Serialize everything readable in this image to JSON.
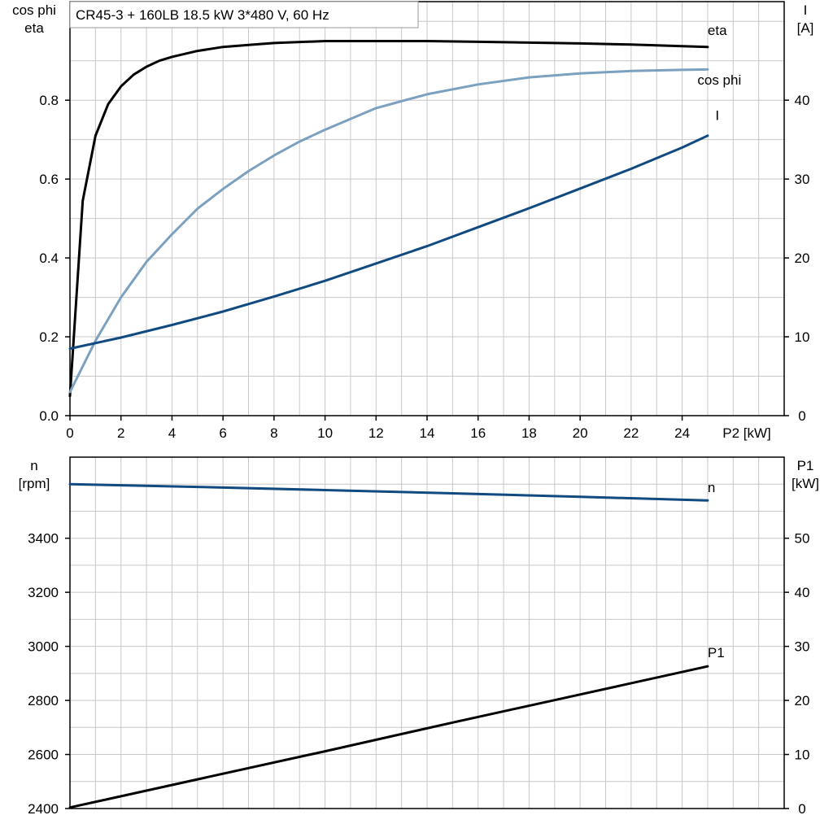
{
  "title_box": "CR45-3 + 160LB   18.5 kW   3*480 V, 60 Hz",
  "colors": {
    "black": "#000000",
    "light_blue": "#7ba0c0",
    "dark_blue": "#104a80",
    "grid": "#c8c8c8"
  },
  "chart_data": [
    {
      "type": "line",
      "xlabel": "P2 [kW]",
      "x_ticks": [
        "0",
        "2",
        "4",
        "6",
        "8",
        "10",
        "12",
        "14",
        "16",
        "18",
        "20",
        "22",
        "24"
      ],
      "xlim": [
        0,
        28
      ],
      "y_left": {
        "label_lines": [
          "cos phi",
          "eta"
        ],
        "ticks": [
          "0.0",
          "0.2",
          "0.4",
          "0.6",
          "0.8"
        ],
        "lim": [
          0,
          1.05
        ]
      },
      "y_right": {
        "label_lines": [
          "I",
          "[A]"
        ],
        "ticks": [
          "0",
          "10",
          "20",
          "30",
          "40"
        ],
        "lim": [
          0,
          52.5
        ]
      },
      "grid": true,
      "series": [
        {
          "name": "eta",
          "axis": "left",
          "color": "#000000",
          "x": [
            0,
            0.5,
            1,
            1.5,
            2,
            2.5,
            3,
            3.5,
            4,
            5,
            6,
            7,
            8,
            10,
            12,
            14,
            16,
            18,
            20,
            22,
            24,
            25
          ],
          "y": [
            0.05,
            0.545,
            0.71,
            0.79,
            0.835,
            0.865,
            0.885,
            0.9,
            0.91,
            0.925,
            0.935,
            0.94,
            0.945,
            0.95,
            0.95,
            0.95,
            0.948,
            0.946,
            0.944,
            0.941,
            0.937,
            0.935
          ]
        },
        {
          "name": "cos phi",
          "axis": "left",
          "color": "#7ba0c0",
          "x": [
            0,
            1,
            2,
            3,
            4,
            5,
            6,
            7,
            8,
            9,
            10,
            12,
            14,
            16,
            18,
            20,
            22,
            24,
            25
          ],
          "y": [
            0.06,
            0.19,
            0.3,
            0.39,
            0.46,
            0.525,
            0.575,
            0.62,
            0.66,
            0.695,
            0.725,
            0.78,
            0.815,
            0.84,
            0.858,
            0.868,
            0.874,
            0.877,
            0.878
          ]
        },
        {
          "name": "I",
          "axis": "right",
          "color": "#104a80",
          "x": [
            0,
            2,
            4,
            6,
            8,
            10,
            12,
            14,
            16,
            18,
            20,
            22,
            24,
            25
          ],
          "y": [
            8.5,
            9.9,
            11.5,
            13.2,
            15.1,
            17.1,
            19.3,
            21.5,
            23.9,
            26.3,
            28.8,
            31.3,
            34.0,
            35.5
          ]
        }
      ],
      "annotations": [
        {
          "text": "eta",
          "x": 25,
          "y": 0.965,
          "axis": "left",
          "color": "#000000"
        },
        {
          "text": "cos phi",
          "x": 24.6,
          "y": 0.84,
          "axis": "left",
          "color": "#7ba0c0"
        },
        {
          "text": "I",
          "x": 25.3,
          "y": 37.5,
          "axis": "right",
          "color": "#104a80"
        }
      ]
    },
    {
      "type": "line",
      "xlabel": "",
      "xlim": [
        0,
        28
      ],
      "y_left": {
        "label_lines": [
          "n",
          "[rpm]"
        ],
        "ticks": [
          "2400",
          "2600",
          "2800",
          "3000",
          "3200",
          "3400"
        ],
        "lim": [
          2400,
          3700
        ]
      },
      "y_right": {
        "label_lines": [
          "P1",
          "[kW]"
        ],
        "ticks": [
          "0",
          "10",
          "20",
          "30",
          "40",
          "50"
        ],
        "lim": [
          0,
          65
        ]
      },
      "grid": true,
      "series": [
        {
          "name": "n",
          "axis": "left",
          "color": "#104a80",
          "x": [
            0,
            5,
            10,
            15,
            20,
            25
          ],
          "y": [
            3600,
            3590,
            3578,
            3566,
            3553,
            3540
          ]
        },
        {
          "name": "P1",
          "axis": "right",
          "color": "#000000",
          "x": [
            0,
            5,
            10,
            15,
            20,
            25
          ],
          "y": [
            0.2,
            5.4,
            10.6,
            15.9,
            21.1,
            26.3
          ]
        }
      ],
      "annotations": [
        {
          "text": "n",
          "x": 25,
          "y": 3570,
          "axis": "left",
          "color": "#104a80"
        },
        {
          "text": "P1",
          "x": 25,
          "y": 28,
          "axis": "right",
          "color": "#000000"
        }
      ]
    }
  ]
}
